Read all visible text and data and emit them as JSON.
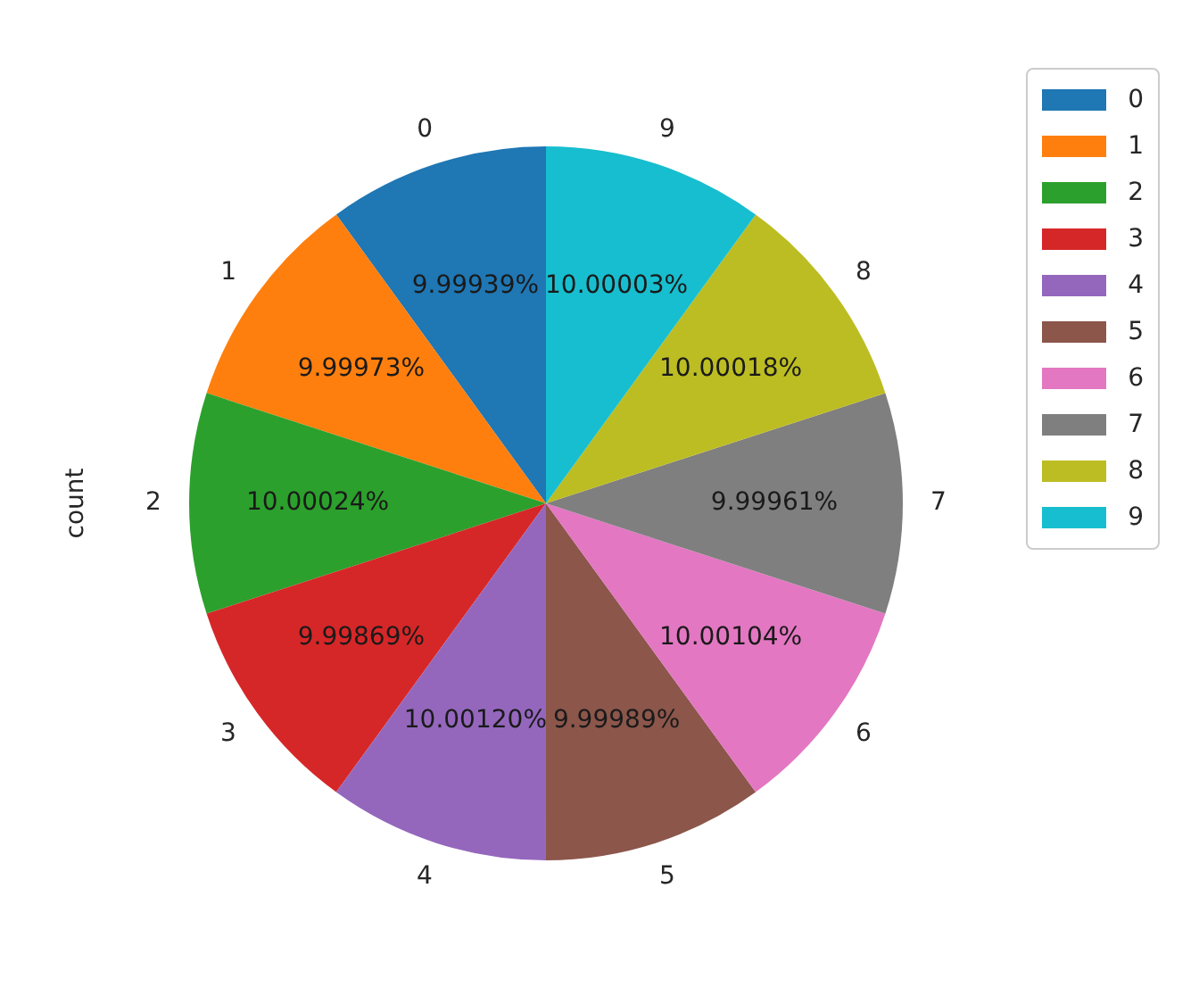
{
  "chart_data": {
    "type": "pie",
    "ylabel": "count",
    "categories": [
      "0",
      "1",
      "2",
      "3",
      "4",
      "5",
      "6",
      "7",
      "8",
      "9"
    ],
    "values": [
      9.99939,
      9.99973,
      10.00024,
      9.99869,
      10.0012,
      9.99989,
      10.00104,
      9.99961,
      10.00018,
      10.00003
    ],
    "value_labels": [
      "9.99939%",
      "9.99973%",
      "10.00024%",
      "9.99869%",
      "10.00120%",
      "9.99989%",
      "10.00104%",
      "9.99961%",
      "10.00018%",
      "10.00003%"
    ],
    "colors": [
      "#1f77b4",
      "#ff7f0e",
      "#2ca02c",
      "#d62728",
      "#9467bd",
      "#8c564b",
      "#e377c2",
      "#7f7f7f",
      "#bcbd22",
      "#17becf"
    ],
    "legend": "top right"
  }
}
